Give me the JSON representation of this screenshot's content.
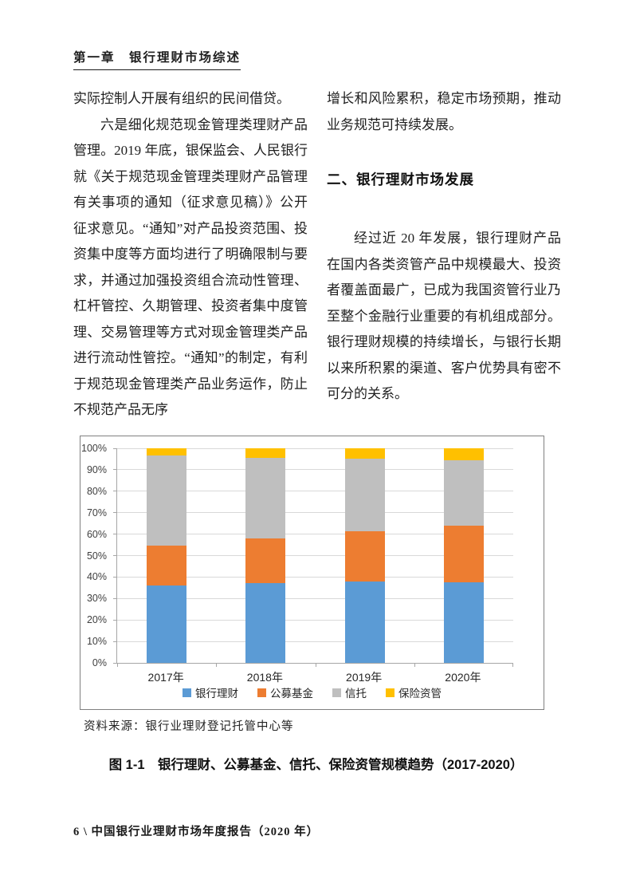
{
  "header": {
    "chapter_title": "第一章　银行理财市场综述"
  },
  "columns": {
    "left": {
      "para1": "实际控制人开展有组织的民间借贷。",
      "para2": "六是细化规范现金管理类理财产品管理。2019 年底，银保监会、人民银行就《关于规范现金管理类理财产品管理有关事项的通知（征求意见稿）》公开征求意见。“通知”对产品投资范围、投资集中度等方面均进行了明确限制与要求，并通过加强投资组合流动性管理、杠杆管控、久期管理、投资者集中度管理、交易管理等方式对现金管理类产品进行流动性管控。“通知”的制定，有利于规范现金管理类产品业务运作，防止不规范产品无序"
    },
    "right": {
      "para1": "增长和风险累积，稳定市场预期，推动业务规范可持续发展。",
      "heading": "二、银行理财市场发展",
      "para2": "经过近 20 年发展，银行理财产品在国内各类资管产品中规模最大、投资者覆盖面最广，已成为我国资管行业乃至整个金融行业重要的有机组成部分。银行理财规模的持续增长，与银行长期以来所积累的渠道、客户优势具有密不可分的关系。"
    }
  },
  "figure": {
    "source_note": "资料来源：银行业理财登记托管中心等",
    "caption": "图 1-1　银行理财、公募基金、信托、保险资管规模趋势（2017-2020）"
  },
  "footer": {
    "text": "6 \\ 中国银行业理财市场年度报告（2020 年）"
  },
  "chart_data": {
    "type": "bar",
    "stacked": true,
    "title": "",
    "xlabel": "",
    "ylabel": "",
    "categories": [
      "2017年",
      "2018年",
      "2019年",
      "2020年"
    ],
    "series": [
      {
        "name": "银行理财",
        "color": "#5B9BD5",
        "values": [
          36.0,
          37.0,
          38.0,
          37.5
        ]
      },
      {
        "name": "公募基金",
        "color": "#ED7D31",
        "values": [
          18.5,
          21.0,
          23.5,
          26.5
        ]
      },
      {
        "name": "信托",
        "color": "#BFBFBF",
        "values": [
          42.0,
          37.5,
          33.5,
          30.5
        ]
      },
      {
        "name": "保险资管",
        "color": "#FFC000",
        "values": [
          3.5,
          4.5,
          5.0,
          5.5
        ]
      }
    ],
    "ylim": [
      0,
      100
    ],
    "y_tick_step": 10,
    "y_tick_suffix": "%",
    "grid": true,
    "legend_position": "bottom"
  }
}
